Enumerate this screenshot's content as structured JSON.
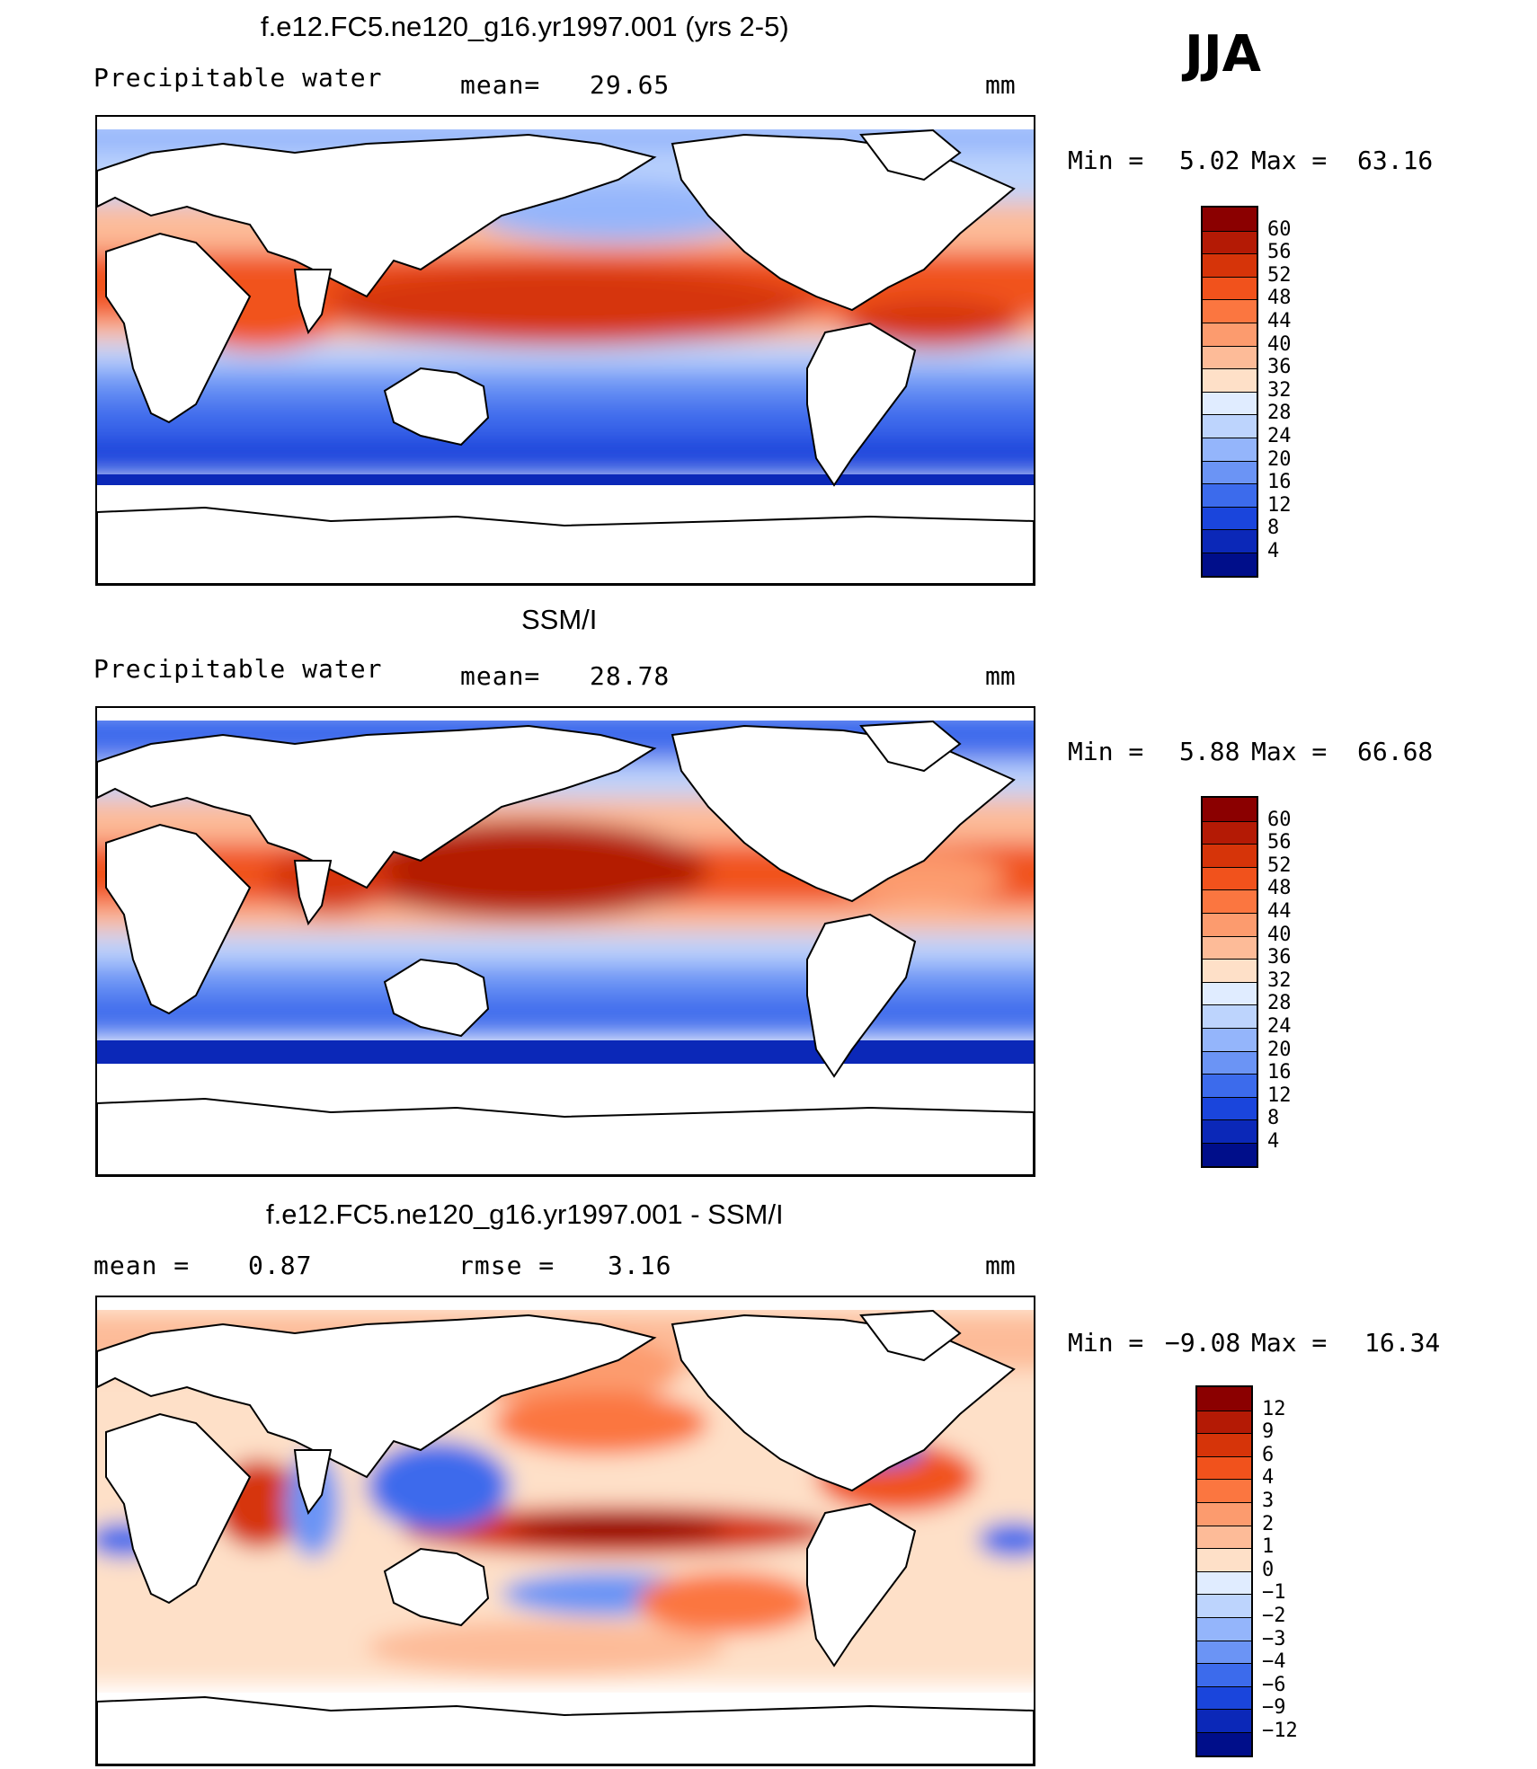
{
  "season": "JJA",
  "panels": [
    {
      "id": "model",
      "title": "f.e12.FC5.ne120_g16.yr1997.001 (yrs 2-5)",
      "variable": "Precipitable water",
      "stat1_label": "mean=",
      "stat1_value": "29.65",
      "units": "mm",
      "min_label": "Min =",
      "min_value": "5.02",
      "max_label": "Max =",
      "max_value": "63.16",
      "colorbar": {
        "labels": [
          "60",
          "56",
          "52",
          "48",
          "44",
          "40",
          "36",
          "32",
          "28",
          "24",
          "20",
          "16",
          "12",
          "8",
          "4"
        ],
        "colors": [
          "#8b0000",
          "#b41a05",
          "#d63409",
          "#f1521c",
          "#fb7640",
          "#fc9b6e",
          "#fdbb98",
          "#fee0c8",
          "#e0ecff",
          "#bdd4fd",
          "#94b5fb",
          "#6b94f5",
          "#3c6bec",
          "#1a45dc",
          "#0b28b8",
          "#000e8a"
        ]
      }
    },
    {
      "id": "obs",
      "title": "SSM/I",
      "variable": "Precipitable water",
      "stat1_label": "mean=",
      "stat1_value": "28.78",
      "units": "mm",
      "min_label": "Min =",
      "min_value": "5.88",
      "max_label": "Max =",
      "max_value": "66.68",
      "colorbar": {
        "labels": [
          "60",
          "56",
          "52",
          "48",
          "44",
          "40",
          "36",
          "32",
          "28",
          "24",
          "20",
          "16",
          "12",
          "8",
          "4"
        ],
        "colors": [
          "#8b0000",
          "#b41a05",
          "#d63409",
          "#f1521c",
          "#fb7640",
          "#fc9b6e",
          "#fdbb98",
          "#fee0c8",
          "#e0ecff",
          "#bdd4fd",
          "#94b5fb",
          "#6b94f5",
          "#3c6bec",
          "#1a45dc",
          "#0b28b8",
          "#000e8a"
        ]
      }
    },
    {
      "id": "diff",
      "title": "f.e12.FC5.ne120_g16.yr1997.001 - SSM/I",
      "stat1_label": "mean =",
      "stat1_value": "0.87",
      "stat2_label": "rmse =",
      "stat2_value": "3.16",
      "units": "mm",
      "min_label": "Min =",
      "min_value": "−9.08",
      "max_label": "Max =",
      "max_value": "16.34",
      "colorbar": {
        "labels": [
          "12",
          "9",
          "6",
          "4",
          "3",
          "2",
          "1",
          "0",
          "−1",
          "−2",
          "−3",
          "−4",
          "−6",
          "−9",
          "−12"
        ],
        "colors": [
          "#8b0000",
          "#b41a05",
          "#d63409",
          "#f1521c",
          "#fb7640",
          "#fc9b6e",
          "#fdbb98",
          "#fee0c8",
          "#e0ecff",
          "#bdd4fd",
          "#94b5fb",
          "#6b94f5",
          "#3c6bec",
          "#1a45dc",
          "#0b28b8",
          "#000e8a"
        ]
      }
    }
  ]
}
